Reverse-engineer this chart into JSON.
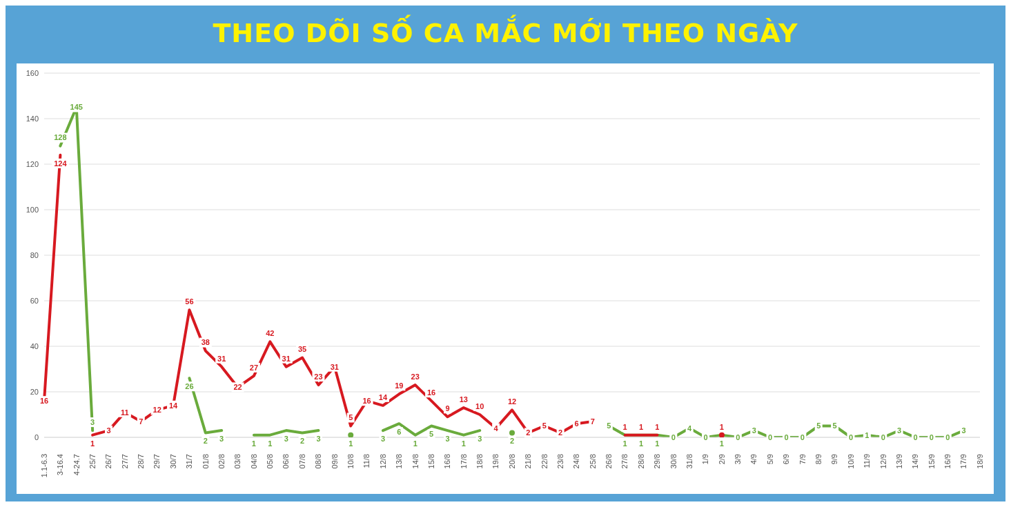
{
  "chart_data": {
    "type": "line",
    "title": "THEO DÕI SỐ CA MẮC MỚI THEO NGÀY",
    "categories": [
      "1.1-6.3",
      "3-16.4",
      "4-24.7",
      "25/7",
      "26/7",
      "27/7",
      "28/7",
      "29/7",
      "30/7",
      "31/7",
      "01/8",
      "02/8",
      "03/8",
      "04/8",
      "05/8",
      "06/8",
      "07/8",
      "08/8",
      "09/8",
      "10/8",
      "11/8",
      "12/8",
      "13/8",
      "14/8",
      "15/8",
      "16/8",
      "17/8",
      "18/8",
      "19/8",
      "20/8",
      "21/8",
      "22/8",
      "23/8",
      "24/8",
      "25/8",
      "26/8",
      "27/8",
      "28/8",
      "29/8",
      "30/8",
      "31/8",
      "1/9",
      "2/9",
      "3/9",
      "4/9",
      "5/9",
      "6/9",
      "7/9",
      "8/9",
      "9/9",
      "10/9",
      "11/9",
      "12/9",
      "13/9",
      "14/9",
      "15/9",
      "16/9",
      "17/9",
      "18/9"
    ],
    "series": [
      {
        "color": "#d71920",
        "values": [
          16,
          124,
          null,
          1,
          3,
          11,
          7,
          12,
          14,
          56,
          38,
          31,
          22,
          27,
          42,
          31,
          35,
          23,
          31,
          5,
          16,
          14,
          19,
          23,
          16,
          9,
          13,
          10,
          4,
          12,
          2,
          5,
          2,
          6,
          7,
          null,
          1,
          1,
          1,
          null,
          null,
          null,
          1,
          null,
          null,
          null,
          null,
          null,
          null,
          null,
          null,
          null,
          null,
          null,
          null,
          null,
          null,
          null,
          null
        ]
      },
      {
        "color": "#6aab3c",
        "values": [
          null,
          128,
          145,
          3,
          null,
          null,
          null,
          null,
          null,
          26,
          2,
          3,
          null,
          1,
          1,
          3,
          2,
          3,
          null,
          1,
          null,
          3,
          6,
          1,
          5,
          3,
          1,
          3,
          null,
          2,
          null,
          null,
          null,
          null,
          null,
          5,
          1,
          1,
          1,
          0,
          4,
          0,
          1,
          0,
          3,
          0,
          0,
          0,
          5,
          5,
          0,
          1,
          0,
          3,
          0,
          0,
          0,
          3,
          null
        ]
      }
    ],
    "ylim": [
      0,
      160
    ],
    "yticks": [
      0,
      20,
      40,
      60,
      80,
      100,
      120,
      140,
      160
    ],
    "grid": "y",
    "data_labels": true,
    "line_style": "solid"
  }
}
